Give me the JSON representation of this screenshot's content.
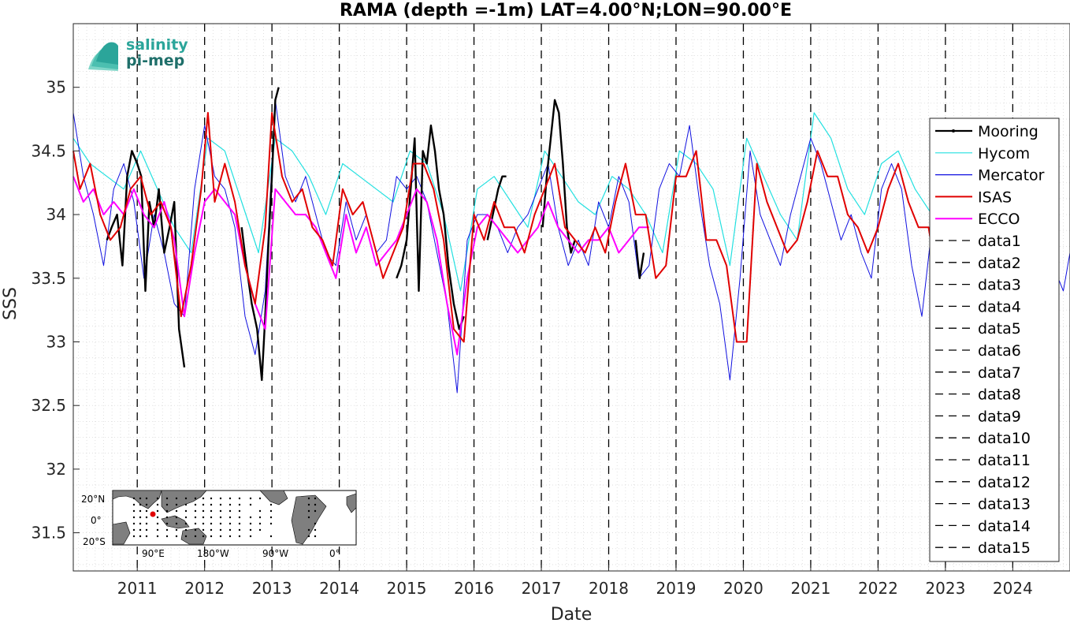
{
  "chart_data": {
    "type": "line",
    "title": "RAMA (depth =-1m) LAT=4.00°N;LON=90.00°E",
    "xlabel": "Date",
    "ylabel": "SSS",
    "xlim": [
      2010.05,
      2024.85
    ],
    "ylim": [
      31.2,
      35.5
    ],
    "x_ticks": [
      "2011",
      "2012",
      "2013",
      "2014",
      "2015",
      "2016",
      "2017",
      "2018",
      "2019",
      "2020",
      "2021",
      "2022",
      "2023",
      "2024"
    ],
    "y_ticks": [
      "31.5",
      "32",
      "32.5",
      "33",
      "33.5",
      "34",
      "34.5",
      "35"
    ],
    "grid": true,
    "legend_position": "right",
    "logo": {
      "line1": "salinity",
      "line2": "pi-mep"
    },
    "inset_map": {
      "lat_labels": [
        "20°N",
        "0°",
        "20°S"
      ],
      "lon_labels": [
        "90°E",
        "180°W",
        "90°W",
        "0°"
      ],
      "marker_color": "#ff0000"
    },
    "vlines": [
      2011,
      2012,
      2013,
      2014,
      2015,
      2016,
      2017,
      2018,
      2019,
      2020,
      2021,
      2022,
      2023,
      2024
    ],
    "series": [
      {
        "name": "Mooring",
        "color": "#000000",
        "segments": [
          {
            "x": [
              2010.55,
              2010.62,
              2010.7,
              2010.78,
              2010.85,
              2010.92,
              2011.0,
              2011.06,
              2011.12,
              2011.18,
              2011.25,
              2011.32,
              2011.4,
              2011.48,
              2011.55,
              2011.62,
              2011.7
            ],
            "y": [
              33.8,
              33.9,
              34.0,
              33.6,
              34.3,
              34.5,
              34.4,
              34.3,
              33.4,
              34.1,
              33.9,
              34.2,
              33.7,
              33.9,
              34.1,
              33.1,
              32.8
            ]
          },
          {
            "x": [
              2012.55,
              2012.62,
              2012.7,
              2012.78,
              2012.85,
              2012.9,
              2012.95,
              2013.0,
              2013.05,
              2013.1
            ],
            "y": [
              33.9,
              33.6,
              33.3,
              33.1,
              32.7,
              33.2,
              33.8,
              34.3,
              34.9,
              35.0
            ]
          },
          {
            "x": [
              2014.85,
              2014.92,
              2015.0,
              2015.06,
              2015.12,
              2015.18,
              2015.24,
              2015.3,
              2015.36,
              2015.42,
              2015.48,
              2015.55,
              2015.62,
              2015.7,
              2015.78,
              2015.85
            ],
            "y": [
              33.5,
              33.6,
              33.8,
              34.2,
              34.6,
              33.4,
              34.5,
              34.4,
              34.7,
              34.5,
              34.2,
              34.0,
              33.6,
              33.3,
              33.1,
              33.2
            ]
          },
          {
            "x": [
              2016.2,
              2016.28,
              2016.36,
              2016.42,
              2016.48
            ],
            "y": [
              33.8,
              34.0,
              34.2,
              34.3,
              34.3
            ]
          },
          {
            "x": [
              2017.02,
              2017.08,
              2017.14,
              2017.2,
              2017.26,
              2017.32,
              2017.38,
              2017.44,
              2017.5
            ],
            "y": [
              33.9,
              34.3,
              34.6,
              34.9,
              34.8,
              34.4,
              33.9,
              33.7,
              33.8
            ]
          },
          {
            "x": [
              2018.4,
              2018.46,
              2018.52
            ],
            "y": [
              33.8,
              33.5,
              33.7
            ]
          }
        ]
      },
      {
        "name": "Hycom",
        "color": "#22e0e0",
        "x": [
          2010.05,
          2010.3,
          2010.55,
          2010.8,
          2011.05,
          2011.3,
          2011.55,
          2011.8,
          2012.05,
          2012.3,
          2012.55,
          2012.8,
          2013.05,
          2013.3,
          2013.55,
          2013.8,
          2014.05,
          2014.3,
          2014.55,
          2014.8,
          2015.05,
          2015.3,
          2015.55,
          2015.8,
          2016.05,
          2016.3,
          2016.55,
          2016.8,
          2017.05,
          2017.3,
          2017.55,
          2017.8,
          2018.05,
          2018.3,
          2018.55,
          2018.8,
          2019.05,
          2019.3,
          2019.55,
          2019.8,
          2020.05,
          2020.3,
          2020.55,
          2020.8,
          2021.05,
          2021.3,
          2021.55,
          2021.8,
          2022.05,
          2022.3,
          2022.55,
          2022.8,
          2023.0,
          2023.1
        ],
        "y": [
          34.6,
          34.4,
          34.3,
          34.2,
          34.5,
          34.2,
          33.9,
          33.7,
          34.6,
          34.5,
          34.1,
          33.7,
          34.6,
          34.5,
          34.3,
          34.0,
          34.4,
          34.3,
          34.2,
          34.1,
          34.5,
          34.4,
          34.0,
          33.4,
          34.2,
          34.3,
          34.1,
          33.9,
          34.5,
          34.3,
          34.1,
          34.0,
          34.3,
          34.2,
          34.0,
          33.7,
          34.5,
          34.4,
          34.2,
          33.6,
          34.6,
          34.3,
          34.0,
          33.8,
          34.8,
          34.6,
          34.2,
          34.0,
          34.4,
          34.5,
          34.2,
          34.0,
          34.6,
          34.7
        ]
      },
      {
        "name": "Mercator",
        "color": "#1010e0",
        "x": [
          2010.05,
          2010.2,
          2010.35,
          2010.5,
          2010.65,
          2010.8,
          2010.95,
          2011.1,
          2011.25,
          2011.4,
          2011.55,
          2011.7,
          2011.85,
          2012.0,
          2012.15,
          2012.3,
          2012.45,
          2012.6,
          2012.75,
          2012.9,
          2013.05,
          2013.2,
          2013.35,
          2013.5,
          2013.65,
          2013.8,
          2013.95,
          2014.1,
          2014.25,
          2014.4,
          2014.55,
          2014.7,
          2014.85,
          2015.0,
          2015.15,
          2015.3,
          2015.45,
          2015.6,
          2015.75,
          2015.9,
          2016.05,
          2016.2,
          2016.35,
          2016.5,
          2016.65,
          2016.8,
          2016.95,
          2017.1,
          2017.25,
          2017.4,
          2017.55,
          2017.7,
          2017.85,
          2018.0,
          2018.15,
          2018.3,
          2018.45,
          2018.6,
          2018.75,
          2018.9,
          2019.05,
          2019.2,
          2019.35,
          2019.5,
          2019.65,
          2019.8,
          2019.95,
          2020.1,
          2020.25,
          2020.4,
          2020.55,
          2020.7,
          2020.85,
          2021.0,
          2021.15,
          2021.3,
          2021.45,
          2021.6,
          2021.75,
          2021.9,
          2022.05,
          2022.2,
          2022.35,
          2022.5,
          2022.65,
          2022.8,
          2022.95,
          2023.1,
          2023.25,
          2023.4,
          2023.55,
          2023.7,
          2023.85,
          2024.0,
          2024.15,
          2024.3,
          2024.45,
          2024.6,
          2024.75,
          2024.85
        ],
        "y": [
          34.8,
          34.3,
          34.0,
          33.6,
          34.2,
          34.4,
          34.1,
          33.5,
          34.0,
          33.7,
          33.3,
          33.2,
          34.2,
          34.7,
          34.3,
          34.2,
          33.9,
          33.2,
          32.9,
          33.4,
          34.9,
          34.3,
          34.1,
          34.3,
          34.0,
          33.7,
          33.6,
          34.1,
          33.8,
          34.0,
          33.7,
          33.8,
          34.3,
          34.2,
          34.3,
          34.1,
          33.7,
          33.3,
          32.6,
          33.8,
          34.0,
          34.0,
          33.9,
          33.7,
          33.9,
          34.0,
          34.2,
          34.4,
          33.9,
          33.6,
          33.8,
          33.6,
          34.1,
          33.9,
          34.3,
          34.1,
          33.5,
          33.6,
          34.2,
          34.4,
          34.3,
          34.7,
          34.1,
          33.6,
          33.3,
          32.7,
          33.5,
          34.5,
          34.0,
          33.8,
          33.6,
          34.0,
          34.3,
          34.6,
          34.4,
          34.1,
          33.8,
          34.0,
          33.7,
          33.5,
          34.2,
          34.4,
          34.2,
          33.6,
          33.2,
          33.9,
          34.0,
          33.8,
          34.2,
          34.0,
          33.6,
          33.7,
          34.1,
          33.9,
          34.5,
          33.8,
          33.5,
          33.6,
          33.4,
          33.7
        ]
      },
      {
        "name": "ISAS",
        "color": "#e00000",
        "x": [
          2010.05,
          2010.15,
          2010.3,
          2010.45,
          2010.6,
          2010.75,
          2010.9,
          2011.05,
          2011.2,
          2011.35,
          2011.5,
          2011.65,
          2011.8,
          2011.95,
          2012.05,
          2012.15,
          2012.3,
          2012.45,
          2012.6,
          2012.75,
          2012.9,
          2013.0,
          2013.15,
          2013.3,
          2013.45,
          2013.6,
          2013.75,
          2013.9,
          2014.05,
          2014.2,
          2014.35,
          2014.5,
          2014.65,
          2014.8,
          2014.95,
          2015.1,
          2015.25,
          2015.4,
          2015.55,
          2015.7,
          2015.85,
          2016.0,
          2016.15,
          2016.3,
          2016.45,
          2016.6,
          2016.75,
          2016.9,
          2017.05,
          2017.2,
          2017.35,
          2017.5,
          2017.65,
          2017.8,
          2017.95,
          2018.1,
          2018.25,
          2018.4,
          2018.55,
          2018.7,
          2018.85,
          2019.0,
          2019.15,
          2019.3,
          2019.45,
          2019.6,
          2019.75,
          2019.9,
          2020.05,
          2020.2,
          2020.35,
          2020.5,
          2020.65,
          2020.8,
          2020.95,
          2021.1,
          2021.25,
          2021.4,
          2021.55,
          2021.7,
          2021.85,
          2022.0,
          2022.15,
          2022.3,
          2022.45,
          2022.6,
          2022.75,
          2022.9
        ],
        "y": [
          34.5,
          34.2,
          34.4,
          34.0,
          33.8,
          33.9,
          34.2,
          34.3,
          34.0,
          34.1,
          33.9,
          33.2,
          33.6,
          34.2,
          34.8,
          34.1,
          34.4,
          34.1,
          33.6,
          33.3,
          33.9,
          34.8,
          34.3,
          34.1,
          34.2,
          33.9,
          33.8,
          33.6,
          34.2,
          34.0,
          34.1,
          33.8,
          33.5,
          33.7,
          33.9,
          34.4,
          34.4,
          34.2,
          33.8,
          33.1,
          33.0,
          34.0,
          33.8,
          34.1,
          33.9,
          33.9,
          33.7,
          34.0,
          34.2,
          34.4,
          33.9,
          33.8,
          33.7,
          33.9,
          33.7,
          34.1,
          34.4,
          34.0,
          34.0,
          33.5,
          33.6,
          34.3,
          34.3,
          34.5,
          33.8,
          33.8,
          33.6,
          33.0,
          33.0,
          34.4,
          34.1,
          33.9,
          33.7,
          33.8,
          34.1,
          34.5,
          34.3,
          34.3,
          34.0,
          33.9,
          33.7,
          33.9,
          34.2,
          34.4,
          34.1,
          33.9,
          33.9,
          33.4
        ]
      },
      {
        "name": "ECCO",
        "color": "#ff00ff",
        "x": [
          2010.05,
          2010.2,
          2010.35,
          2010.5,
          2010.65,
          2010.8,
          2010.95,
          2011.1,
          2011.25,
          2011.4,
          2011.55,
          2011.7,
          2011.85,
          2012.0,
          2012.15,
          2012.3,
          2012.45,
          2012.6,
          2012.75,
          2012.9,
          2013.05,
          2013.2,
          2013.35,
          2013.5,
          2013.65,
          2013.8,
          2013.95,
          2014.1,
          2014.25,
          2014.4,
          2014.55,
          2014.7,
          2014.85,
          2015.0,
          2015.15,
          2015.3,
          2015.45,
          2015.6,
          2015.75,
          2015.9,
          2016.05,
          2016.2,
          2016.35,
          2016.5,
          2016.65,
          2016.8,
          2016.95,
          2017.1,
          2017.25,
          2017.4,
          2017.55,
          2017.7,
          2017.85,
          2018.0,
          2018.15,
          2018.3,
          2018.45,
          2018.6
        ],
        "y": [
          34.3,
          34.1,
          34.2,
          34.0,
          34.1,
          34.0,
          34.2,
          34.0,
          33.9,
          34.1,
          33.8,
          33.2,
          33.7,
          34.1,
          34.2,
          34.1,
          34.0,
          33.6,
          33.3,
          33.1,
          34.2,
          34.1,
          34.0,
          34.0,
          33.9,
          33.7,
          33.5,
          34.0,
          33.7,
          33.9,
          33.6,
          33.7,
          33.8,
          34.0,
          34.2,
          34.1,
          33.8,
          33.3,
          32.9,
          33.5,
          33.9,
          34.0,
          33.9,
          33.8,
          33.7,
          33.8,
          33.9,
          34.1,
          33.9,
          33.8,
          33.7,
          33.8,
          33.8,
          33.9,
          33.7,
          33.8,
          33.9,
          33.9
        ]
      }
    ],
    "dashed_series": [
      "data1",
      "data2",
      "data3",
      "data4",
      "data5",
      "data6",
      "data7",
      "data8",
      "data9",
      "data10",
      "data11",
      "data12",
      "data13",
      "data14",
      "data15"
    ]
  }
}
